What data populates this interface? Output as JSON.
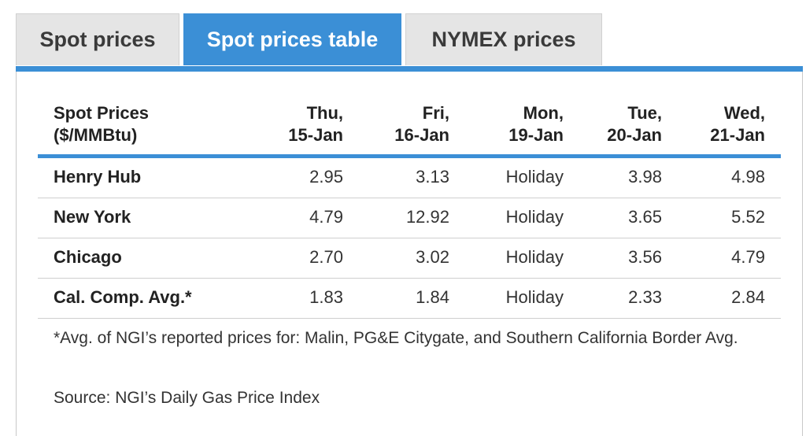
{
  "tabs": [
    "Spot prices",
    "Spot prices table",
    "NYMEX prices"
  ],
  "active_tab": 1,
  "colors": {
    "accent": "#3b8fd6",
    "tab_bg": "#e5e5e5"
  },
  "table": {
    "header": {
      "label": "Spot Prices\n($/MMBtu)",
      "columns": [
        "Thu,\n15-Jan",
        "Fri,\n16-Jan",
        "Mon,\n19-Jan",
        "Tue,\n20-Jan",
        "Wed,\n21-Jan"
      ]
    },
    "rows": [
      {
        "name": "Henry Hub",
        "values": [
          "2.95",
          "3.13",
          "Holiday",
          "3.98",
          "4.98"
        ]
      },
      {
        "name": "New York",
        "values": [
          "4.79",
          "12.92",
          "Holiday",
          "3.65",
          "5.52"
        ]
      },
      {
        "name": "Chicago",
        "values": [
          "2.70",
          "3.02",
          "Holiday",
          "3.56",
          "4.79"
        ]
      },
      {
        "name": "Cal. Comp. Avg.*",
        "values": [
          "1.83",
          "1.84",
          "Holiday",
          "2.33",
          "2.84"
        ]
      }
    ]
  },
  "footnote": "*Avg. of NGI’s reported prices for: Malin, PG&E Citygate, and Southern California Border Avg.",
  "source": "Source: NGI’s Daily Gas Price Index"
}
